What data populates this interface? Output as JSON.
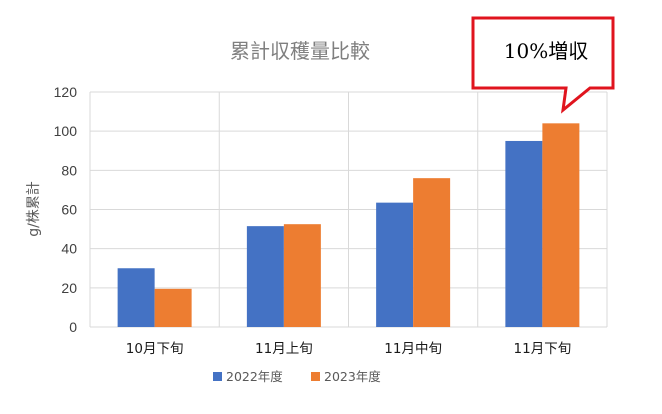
{
  "chart_data": {
    "type": "bar",
    "title": "累計収穫量比較",
    "xlabel": "",
    "ylabel": "g/株累計",
    "categories": [
      "10月下旬",
      "11月上旬",
      "11月中旬",
      "11月下旬"
    ],
    "series": [
      {
        "name": "2022年度",
        "values": [
          30,
          51.5,
          63.5,
          95
        ],
        "color": "#4472C4"
      },
      {
        "name": "2023年度",
        "values": [
          19.5,
          52.5,
          76,
          104
        ],
        "color": "#ED7D31"
      }
    ],
    "ylim": [
      0,
      120
    ],
    "yticks": [
      0,
      20,
      40,
      60,
      80,
      100,
      120
    ],
    "grid": true,
    "legend": "bottom",
    "annotation": {
      "text": "10%増収",
      "border_color": "#E0141E",
      "points_to": "11月下旬"
    }
  }
}
